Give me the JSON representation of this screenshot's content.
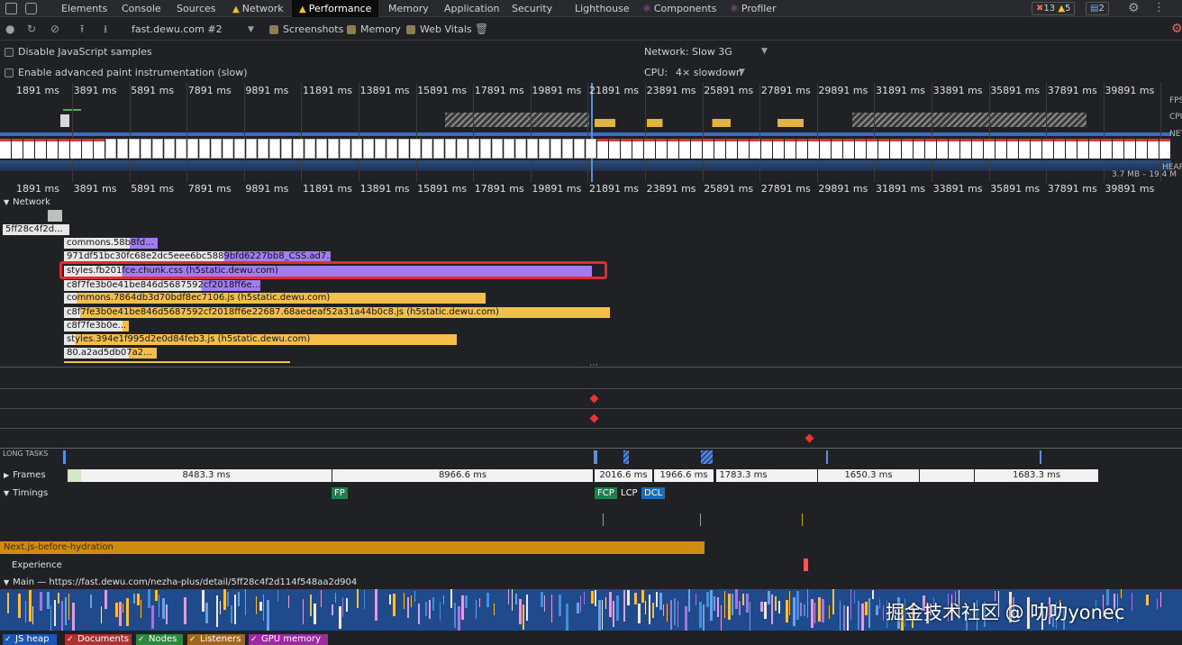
{
  "tabs": [
    {
      "label": "Elements"
    },
    {
      "label": "Console"
    },
    {
      "label": "Sources"
    },
    {
      "label": "Network",
      "warn": true
    },
    {
      "label": "Performance",
      "warn": true,
      "active": true
    },
    {
      "label": "Memory"
    },
    {
      "label": "Application"
    },
    {
      "label": "Security"
    },
    {
      "label": "Lighthouse"
    },
    {
      "label": "Components",
      "react": true
    },
    {
      "label": "Profiler",
      "react": true
    }
  ],
  "badges": {
    "errors": "13",
    "warnings": "5",
    "messages": "2"
  },
  "toolbar": {
    "profile_select": "fast.dewu.com #2",
    "screenshots_label": "Screenshots",
    "memory_label": "Memory",
    "web_vitals_label": "Web Vitals"
  },
  "settings": {
    "disable_js_samples_label": "Disable JavaScript samples",
    "advanced_paint_label": "Enable advanced paint instrumentation (slow)",
    "network_label": "Network:",
    "network_value": "Slow 3G",
    "cpu_label": "CPU:",
    "cpu_value": "4× slowdown"
  },
  "overview": {
    "ticks": [
      "1891 ms",
      "3891 ms",
      "5891 ms",
      "7891 ms",
      "9891 ms",
      "11891 ms",
      "13891 ms",
      "15891 ms",
      "17891 ms",
      "19891 ms",
      "21891 ms",
      "23891 ms",
      "25891 ms",
      "27891 ms",
      "29891 ms",
      "31891 ms",
      "33891 ms",
      "35891 ms",
      "37891 ms",
      "39891 ms"
    ],
    "track_labels": [
      "FPS",
      "CPU",
      "NET",
      "HEAP"
    ],
    "heap_range": "3.7 MB – 19.4 M"
  },
  "network": {
    "label": "Network",
    "requests": [
      {
        "text": "5ff28c4f2d...",
        "color": "white"
      },
      {
        "text": "commons.58b8fd...",
        "color": "purple"
      },
      {
        "text": "971df51bc30fc68e2dc5eee6bc5889bfd6227bb8_CSS.ad7...",
        "color": "purple"
      },
      {
        "text": "styles.fb201fce.chunk.css (h5static.dewu.com)",
        "color": "purple"
      },
      {
        "text": "c8f7fe3b0e41be846d5687592cf2018ff6e...",
        "color": "purple"
      },
      {
        "text": "commons.7864db3d70bdf8ec7106.js (h5static.dewu.com)",
        "color": "yellow"
      },
      {
        "text": "c8f7fe3b0e41be846d5687592cf2018ff6e22687.68aedeaf52a31a44b0c8.js (h5static.dewu.com)",
        "color": "yellow"
      },
      {
        "text": "c8f7fe3b0e...",
        "color": "yellow"
      },
      {
        "text": "styles.394e1f995d2e0d84feb3.js (h5static.dewu.com)",
        "color": "yellow"
      },
      {
        "text": "80.a2ad5db07a2...",
        "color": "yellow"
      }
    ]
  },
  "long_tasks_label": "LONG TASKS",
  "frames": {
    "label": "Frames",
    "segments": [
      "8483.3 ms",
      "8966.6 ms",
      "2016.6 ms",
      "1966.6 ms",
      "1783.3 ms",
      "1650.3 ms",
      "1683.3 ms"
    ]
  },
  "timings": {
    "label": "Timings",
    "markers": [
      "FP",
      "FCP",
      "LCP",
      "DCL"
    ],
    "user_timing": "Next.js-before-hydration"
  },
  "experience_label": "Experience",
  "main_thread_label": "Main — https://fast.dewu.com/nezha-plus/detail/5ff28c4f2d114f548aa2d904",
  "legend": [
    "JS heap",
    "Documents",
    "Nodes",
    "Listeners",
    "GPU memory"
  ],
  "watermark": "掘金技术社区 @ 叻叻yonec",
  "colors": {
    "active_tab": "#0b0b0b",
    "css_bar": "#a27df0",
    "js_bar": "#f3bf4a",
    "highlight": "#e02d2d",
    "main_thread": "#1f4a8c"
  }
}
